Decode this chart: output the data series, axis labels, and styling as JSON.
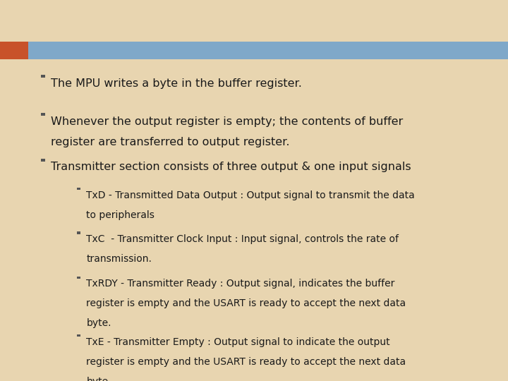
{
  "bg_color": "#e8d5b0",
  "header_bar_color": "#7fa8c9",
  "accent_rect_color": "#c8522a",
  "text_color": "#1a1a1a",
  "bullet1": "The MPU writes a byte in the buffer register.",
  "bullet2_line1": "Whenever the output register is empty; the contents of buffer",
  "bullet2_line2": "register are transferred to output register.",
  "bullet3": "Transmitter section consists of three output & one input signals",
  "sub1_line1": "TxD - Transmitted Data Output : Output signal to transmit the data",
  "sub1_line2": "to peripherals",
  "sub2_line1": "TxC  - Transmitter Clock Input : Input signal, controls the rate of",
  "sub2_line2": "transmission.",
  "sub3_line1": "TxRDY - Transmitter Ready : Output signal, indicates the buffer",
  "sub3_line2": "register is empty and the USART is ready to accept the next data",
  "sub3_line3": "byte.",
  "sub4_line1": "TxE - Transmitter Empty : Output signal to indicate the output",
  "sub4_line2": "register is empty and the USART is ready to accept the next data",
  "sub4_line3": "byte.",
  "font_size_main": 11.5,
  "font_size_sub": 10.0,
  "font_family": "DejaVu Sans"
}
